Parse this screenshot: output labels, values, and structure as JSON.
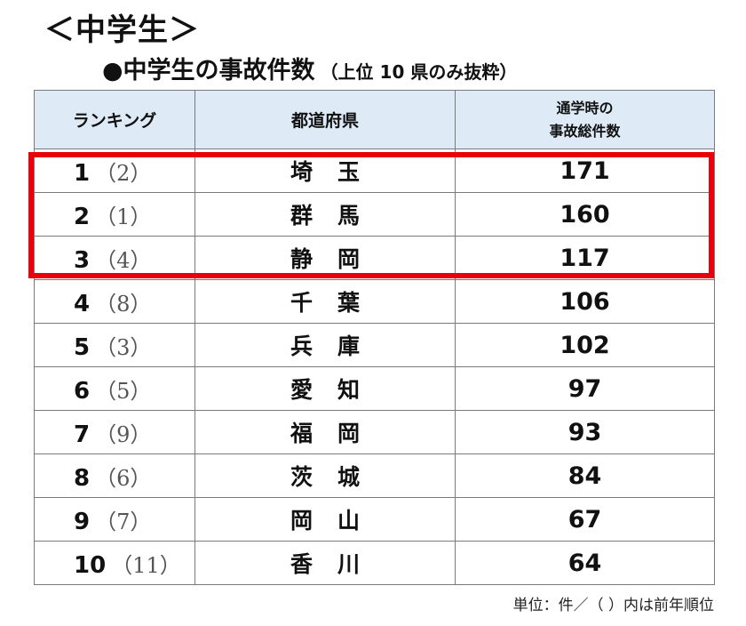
{
  "heading": "＜中学生＞",
  "subtitle": {
    "main": "●中学生の事故件数",
    "note": "（上位 10 県のみ抜粋）"
  },
  "table": {
    "headers": {
      "ranking": "ランキング",
      "prefecture": "都道府県",
      "count_line1": "通学時の",
      "count_line2": "事故総件数"
    },
    "rows": [
      {
        "rank": "1",
        "prev": "（2）",
        "pref_a": "埼",
        "pref_b": "玉",
        "count": "171"
      },
      {
        "rank": "2",
        "prev": "（1）",
        "pref_a": "群",
        "pref_b": "馬",
        "count": "160"
      },
      {
        "rank": "3",
        "prev": "（4）",
        "pref_a": "静",
        "pref_b": "岡",
        "count": "117"
      },
      {
        "rank": "4",
        "prev": "（8）",
        "pref_a": "千",
        "pref_b": "葉",
        "count": "106"
      },
      {
        "rank": "5",
        "prev": "（3）",
        "pref_a": "兵",
        "pref_b": "庫",
        "count": "102"
      },
      {
        "rank": "6",
        "prev": "（5）",
        "pref_a": "愛",
        "pref_b": "知",
        "count": "97"
      },
      {
        "rank": "7",
        "prev": "（9）",
        "pref_a": "福",
        "pref_b": "岡",
        "count": "93"
      },
      {
        "rank": "8",
        "prev": "（6）",
        "pref_a": "茨",
        "pref_b": "城",
        "count": "84"
      },
      {
        "rank": "9",
        "prev": "（7）",
        "pref_a": "岡",
        "pref_b": "山",
        "count": "67"
      },
      {
        "rank": "10",
        "prev": "（11）",
        "pref_a": "香",
        "pref_b": "川",
        "count": "64"
      }
    ]
  },
  "footnote": "単位：件／（ ）内は前年順位",
  "colors": {
    "header_bg": "#deebf7",
    "highlight_border": "#e8000b",
    "grid_line": "#7a7a7a"
  }
}
